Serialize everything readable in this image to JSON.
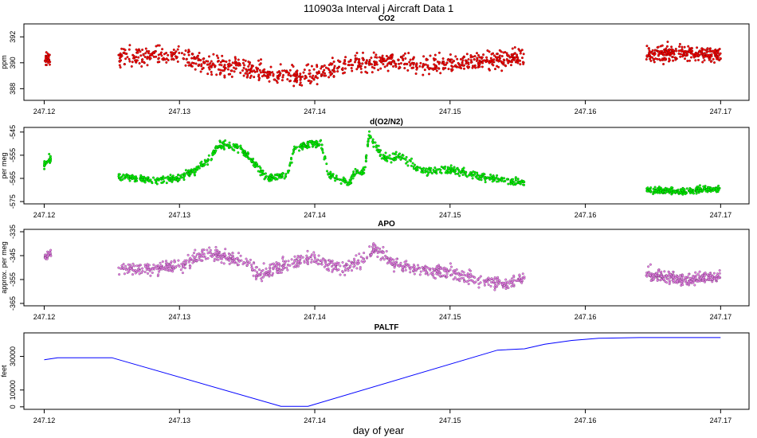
{
  "figure": {
    "title": "110903a   Interval j Aircraft Data 1",
    "xlabel": "day of year"
  },
  "chart_data": [
    {
      "type": "scatter",
      "title": "CO2",
      "ylabel": "ppm",
      "color": "#ff0000",
      "xlim": [
        247.1185,
        247.1721
      ],
      "ylim": [
        387.1,
        393.0
      ],
      "xticks": [
        247.12,
        247.13,
        247.14,
        247.15,
        247.16,
        247.17
      ],
      "yticks": [
        388,
        390,
        392
      ],
      "segments": [
        {
          "x0": 247.12,
          "x1": 247.1205,
          "levels": [
            [
              247.12,
              390.2
            ],
            [
              247.1205,
              390.3
            ]
          ],
          "spread": 0.9,
          "n": 30
        },
        {
          "x0": 247.1255,
          "x1": 247.1555,
          "levels": [
            [
              247.1255,
              390.4
            ],
            [
              247.128,
              390.6
            ],
            [
              247.13,
              390.5
            ],
            [
              247.132,
              389.8
            ],
            [
              247.135,
              389.6
            ],
            [
              247.137,
              389.0
            ],
            [
              247.139,
              388.9
            ],
            [
              247.141,
              389.4
            ],
            [
              247.143,
              390.0
            ],
            [
              247.146,
              390.1
            ],
            [
              247.149,
              389.9
            ],
            [
              247.152,
              390.2
            ],
            [
              247.1555,
              390.4
            ]
          ],
          "spread": 1.3,
          "n": 900
        },
        {
          "x0": 247.1645,
          "x1": 247.17,
          "levels": [
            [
              247.1645,
              390.6
            ],
            [
              247.167,
              390.8
            ],
            [
              247.17,
              390.6
            ]
          ],
          "spread": 1.1,
          "n": 260
        }
      ]
    },
    {
      "type": "scatter",
      "title": "d(O2/N2)",
      "ylabel": "per meg",
      "color": "#00ff00",
      "xlim": [
        247.1185,
        247.1721
      ],
      "ylim": [
        -576,
        -543
      ],
      "xticks": [
        247.12,
        247.13,
        247.14,
        247.15,
        247.16,
        247.17
      ],
      "yticks": [
        -545,
        -555,
        -565,
        -575
      ],
      "segments": [
        {
          "x0": 247.12,
          "x1": 247.1205,
          "levels": [
            [
              247.12,
              -559
            ],
            [
              247.1205,
              -556
            ]
          ],
          "spread": 3,
          "n": 30
        },
        {
          "x0": 247.1255,
          "x1": 247.1555,
          "levels": [
            [
              247.1255,
              -564
            ],
            [
              247.128,
              -566
            ],
            [
              247.13,
              -565
            ],
            [
              247.131,
              -562
            ],
            [
              247.132,
              -558
            ],
            [
              247.133,
              -550
            ],
            [
              247.1345,
              -552
            ],
            [
              247.1355,
              -558
            ],
            [
              247.1365,
              -565
            ],
            [
              247.138,
              -563
            ],
            [
              247.1385,
              -552
            ],
            [
              247.14,
              -550
            ],
            [
              247.1405,
              -551
            ],
            [
              247.141,
              -563
            ],
            [
              247.1425,
              -567
            ],
            [
              247.143,
              -562
            ],
            [
              247.1437,
              -562
            ],
            [
              247.144,
              -546
            ],
            [
              247.145,
              -556
            ],
            [
              247.1465,
              -556
            ],
            [
              247.148,
              -562
            ],
            [
              247.15,
              -561
            ],
            [
              247.152,
              -564
            ],
            [
              247.1555,
              -567
            ]
          ],
          "spread": 3,
          "n": 900
        },
        {
          "x0": 247.1645,
          "x1": 247.17,
          "levels": [
            [
              247.1645,
              -570
            ],
            [
              247.167,
              -570.5
            ],
            [
              247.17,
              -569.5
            ]
          ],
          "spread": 2.5,
          "n": 260
        }
      ]
    },
    {
      "type": "scatter",
      "title": "APO",
      "ylabel": "approx. per meg",
      "color": "#ee82ee",
      "xlim": [
        247.1185,
        247.1721
      ],
      "ylim": [
        -366,
        -334
      ],
      "xticks": [
        247.12,
        247.13,
        247.14,
        247.15,
        247.16,
        247.17
      ],
      "yticks": [
        -335,
        -345,
        -355,
        -365
      ],
      "segments": [
        {
          "x0": 247.12,
          "x1": 247.1205,
          "levels": [
            [
              247.12,
              -346
            ],
            [
              247.1205,
              -344
            ]
          ],
          "spread": 4,
          "n": 30
        },
        {
          "x0": 247.1255,
          "x1": 247.1555,
          "levels": [
            [
              247.1255,
              -350
            ],
            [
              247.128,
              -351
            ],
            [
              247.13,
              -349
            ],
            [
              247.132,
              -344
            ],
            [
              247.1345,
              -347
            ],
            [
              247.136,
              -353
            ],
            [
              247.138,
              -348
            ],
            [
              247.14,
              -346
            ],
            [
              247.142,
              -351
            ],
            [
              247.1437,
              -346
            ],
            [
              247.1445,
              -342
            ],
            [
              247.146,
              -349
            ],
            [
              247.148,
              -351
            ],
            [
              247.15,
              -352
            ],
            [
              247.152,
              -355
            ],
            [
              247.154,
              -357
            ],
            [
              247.1555,
              -354
            ]
          ],
          "spread": 5,
          "n": 900
        },
        {
          "x0": 247.1645,
          "x1": 247.17,
          "levels": [
            [
              247.1645,
              -352
            ],
            [
              247.167,
              -355
            ],
            [
              247.17,
              -354
            ]
          ],
          "spread": 4.5,
          "n": 260
        }
      ]
    },
    {
      "type": "line",
      "title": "PALTF",
      "ylabel": "feet",
      "color": "#0000ff",
      "xlim": [
        247.1185,
        247.1721
      ],
      "ylim": [
        -1500,
        44000
      ],
      "xticks": [
        247.12,
        247.13,
        247.14,
        247.15,
        247.16,
        247.17
      ],
      "yticks": [
        0,
        10000,
        30000
      ],
      "x": [
        247.12,
        247.121,
        247.1215,
        247.125,
        247.1375,
        247.1395,
        247.1535,
        247.1555,
        247.157,
        247.159,
        247.161,
        247.164,
        247.17
      ],
      "y": [
        28000,
        29200,
        29200,
        29200,
        300,
        300,
        33700,
        34500,
        37200,
        39500,
        40800,
        41200,
        41200
      ]
    }
  ]
}
